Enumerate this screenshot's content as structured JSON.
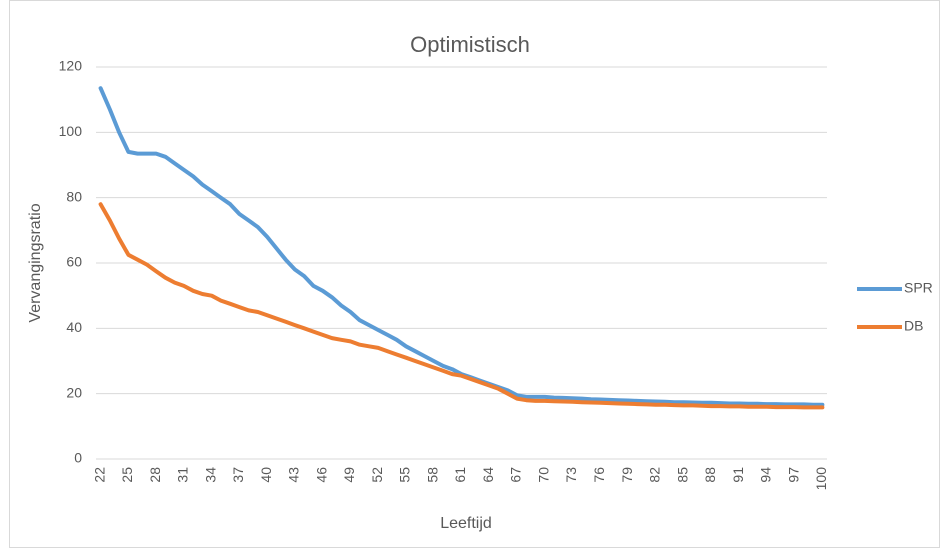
{
  "chart_data": {
    "type": "line",
    "title": "Optimistisch",
    "x_label": "Leeftijd",
    "y_label": "Vervangingsratio",
    "categories": [
      "22",
      null,
      null,
      "25",
      null,
      null,
      "28",
      null,
      null,
      "31",
      null,
      null,
      "34",
      null,
      null,
      "37",
      null,
      null,
      "40",
      null,
      null,
      "43",
      null,
      null,
      "46",
      null,
      null,
      "49",
      null,
      null,
      "52",
      null,
      null,
      "55",
      null,
      null,
      "58",
      null,
      null,
      "61",
      null,
      null,
      "64",
      null,
      null,
      "67",
      null,
      null,
      "70",
      null,
      null,
      "73",
      null,
      null,
      "76",
      null,
      null,
      "79",
      null,
      null,
      "82",
      null,
      null,
      "85",
      null,
      null,
      "88",
      null,
      null,
      "91",
      null,
      null,
      "94",
      null,
      null,
      "97",
      null,
      null,
      "100"
    ],
    "series": [
      {
        "name": "SPR",
        "color": "#5b9bd5",
        "values": [
          113.5,
          107,
          100,
          94,
          93.5,
          93.5,
          93.5,
          92.5,
          90.5,
          88.5,
          86.5,
          84,
          82,
          80,
          78,
          75,
          73,
          71,
          68,
          64.5,
          61,
          58,
          56,
          53,
          51.5,
          49.5,
          47,
          45,
          42.5,
          41,
          39.5,
          38,
          36.5,
          34.5,
          33,
          31.5,
          30,
          28.5,
          27.5,
          26,
          25,
          24,
          23,
          22,
          21,
          19.5,
          19,
          19,
          19,
          18.8,
          18.7,
          18.6,
          18.5,
          18.3,
          18.2,
          18.1,
          18,
          17.9,
          17.8,
          17.7,
          17.6,
          17.5,
          17.4,
          17.4,
          17.3,
          17.2,
          17.2,
          17.1,
          17,
          17,
          16.9,
          16.9,
          16.8,
          16.8,
          16.7,
          16.7,
          16.7,
          16.6,
          16.6
        ]
      },
      {
        "name": "DB",
        "color": "#ed7d31",
        "values": [
          78,
          73,
          67.5,
          62.5,
          61,
          59.5,
          57.5,
          55.5,
          54,
          53,
          51.5,
          50.5,
          50,
          48.5,
          47.5,
          46.5,
          45.5,
          45,
          44,
          43,
          42,
          41,
          40,
          39,
          38,
          37,
          36.5,
          36,
          35,
          34.5,
          34,
          33,
          32,
          31,
          30,
          29,
          28,
          27,
          26,
          25.5,
          24.5,
          23.5,
          22.5,
          21.5,
          20,
          18.5,
          18,
          17.8,
          17.8,
          17.7,
          17.6,
          17.5,
          17.4,
          17.3,
          17.2,
          17.1,
          17,
          16.9,
          16.8,
          16.7,
          16.6,
          16.6,
          16.5,
          16.4,
          16.4,
          16.3,
          16.2,
          16.2,
          16.1,
          16.1,
          16,
          16,
          16,
          15.9,
          15.9,
          15.9,
          15.8,
          15.8,
          15.8
        ]
      }
    ],
    "ylim": [
      0,
      120
    ],
    "yticks": [
      0,
      20,
      40,
      60,
      80,
      100,
      120
    ],
    "grid": true,
    "legend": "right"
  }
}
